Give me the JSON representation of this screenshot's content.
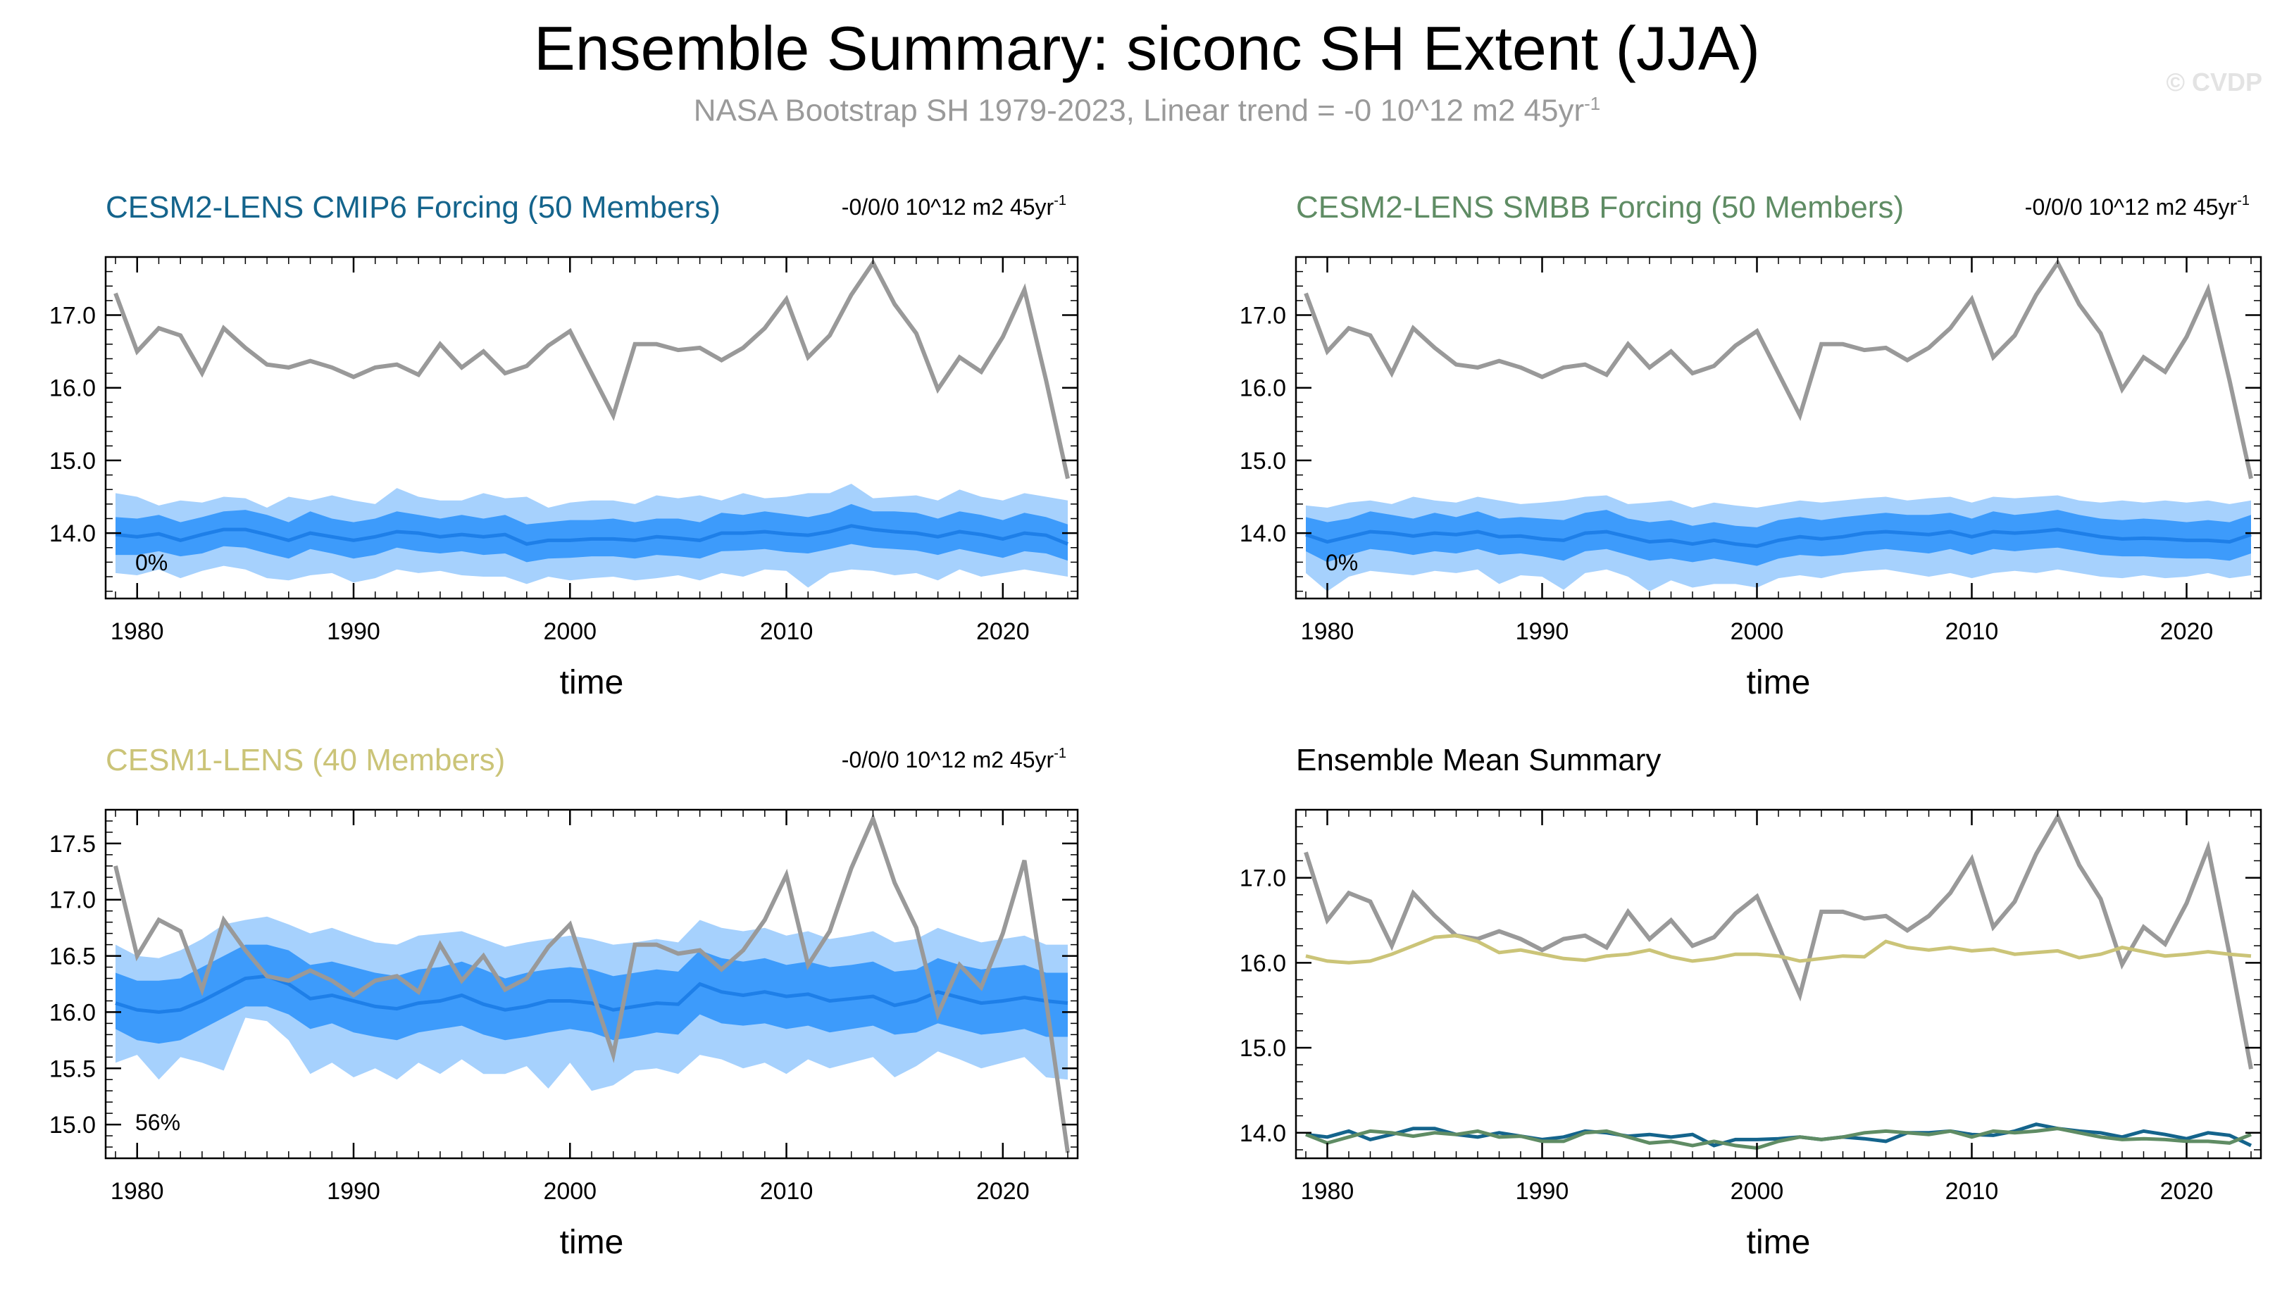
{
  "figure": {
    "title": "Ensemble Summary: siconc SH Extent (JJA)",
    "subtitle": "NASA Bootstrap SH 1979-2023, Linear trend = -0 10^12 m2 45yr",
    "subtitle_sup": "-1",
    "watermark": "© CVDP"
  },
  "colors": {
    "obs": "#999999",
    "band_outer": "#a6d1fd",
    "band_inner": "#3d9bfb",
    "mean_line": "#1e7fe8",
    "cmip6_title": "#14648c",
    "smbb_title": "#5f8c64",
    "cesm1_title": "#cbc478"
  },
  "chart_data": [
    {
      "type": "line",
      "title": "CESM2-LENS CMIP6 Forcing (50 Members)",
      "trend_label": "-0/0/0 10^12 m2 45yr",
      "trend_sup": "-1",
      "xlabel": "time",
      "xlim": [
        1979,
        2023
      ],
      "ylim": [
        13.1,
        17.8
      ],
      "xticks": [
        1980,
        1990,
        2000,
        2010,
        2020
      ],
      "yticks": [
        14.0,
        15.0,
        16.0,
        17.0
      ],
      "percent_label": "0%",
      "years_start": 1979,
      "obs": [
        17.3,
        16.5,
        16.82,
        16.72,
        16.2,
        16.82,
        16.55,
        16.32,
        16.28,
        16.37,
        16.28,
        16.15,
        16.28,
        16.32,
        16.18,
        16.6,
        16.28,
        16.5,
        16.2,
        16.3,
        16.58,
        16.78,
        16.2,
        15.62,
        16.6,
        16.6,
        16.52,
        16.55,
        16.38,
        16.55,
        16.82,
        17.22,
        16.42,
        16.72,
        17.28,
        17.72,
        17.15,
        16.75,
        15.98,
        16.42,
        16.22,
        16.7,
        17.35,
        16.1,
        14.75
      ],
      "mean": [
        13.98,
        13.95,
        13.99,
        13.9,
        13.98,
        14.05,
        14.05,
        13.98,
        13.9,
        14.0,
        13.95,
        13.9,
        13.95,
        14.02,
        14.0,
        13.95,
        13.98,
        13.95,
        13.98,
        13.85,
        13.9,
        13.9,
        13.92,
        13.92,
        13.9,
        13.95,
        13.93,
        13.9,
        14.0,
        14.0,
        14.02,
        13.99,
        13.97,
        14.02,
        14.1,
        14.05,
        14.02,
        14.0,
        13.95,
        14.02,
        13.98,
        13.92,
        14.0,
        13.97,
        13.85
      ],
      "inner_lo": [
        13.7,
        13.7,
        13.75,
        13.68,
        13.72,
        13.82,
        13.8,
        13.72,
        13.65,
        13.78,
        13.72,
        13.65,
        13.7,
        13.8,
        13.75,
        13.72,
        13.75,
        13.7,
        13.72,
        13.6,
        13.65,
        13.66,
        13.68,
        13.68,
        13.65,
        13.7,
        13.68,
        13.65,
        13.75,
        13.76,
        13.78,
        13.74,
        13.72,
        13.78,
        13.85,
        13.8,
        13.78,
        13.76,
        13.7,
        13.78,
        13.72,
        13.66,
        13.75,
        13.72,
        13.62
      ],
      "inner_hi": [
        14.22,
        14.2,
        14.25,
        14.15,
        14.22,
        14.3,
        14.32,
        14.25,
        14.15,
        14.3,
        14.2,
        14.15,
        14.2,
        14.3,
        14.25,
        14.2,
        14.25,
        14.2,
        14.25,
        14.12,
        14.15,
        14.18,
        14.18,
        14.2,
        14.15,
        14.2,
        14.2,
        14.15,
        14.28,
        14.25,
        14.3,
        14.26,
        14.22,
        14.28,
        14.4,
        14.3,
        14.3,
        14.28,
        14.2,
        14.3,
        14.25,
        14.18,
        14.28,
        14.22,
        14.12
      ],
      "outer_lo": [
        13.45,
        13.42,
        13.5,
        13.38,
        13.48,
        13.55,
        13.5,
        13.38,
        13.35,
        13.42,
        13.45,
        13.32,
        13.38,
        13.5,
        13.45,
        13.48,
        13.42,
        13.4,
        13.4,
        13.3,
        13.4,
        13.35,
        13.38,
        13.4,
        13.35,
        13.38,
        13.42,
        13.35,
        13.45,
        13.4,
        13.5,
        13.48,
        13.25,
        13.45,
        13.5,
        13.48,
        13.42,
        13.45,
        13.35,
        13.5,
        13.4,
        13.45,
        13.5,
        13.45,
        13.4
      ],
      "outer_hi": [
        14.55,
        14.5,
        14.38,
        14.45,
        14.42,
        14.5,
        14.48,
        14.35,
        14.5,
        14.45,
        14.52,
        14.45,
        14.4,
        14.62,
        14.5,
        14.45,
        14.45,
        14.55,
        14.48,
        14.5,
        14.35,
        14.42,
        14.45,
        14.45,
        14.4,
        14.52,
        14.48,
        14.52,
        14.45,
        14.55,
        14.48,
        14.5,
        14.55,
        14.55,
        14.68,
        14.48,
        14.5,
        14.52,
        14.45,
        14.6,
        14.5,
        14.45,
        14.55,
        14.5,
        14.45
      ]
    },
    {
      "type": "line",
      "title": "CESM2-LENS SMBB Forcing (50 Members)",
      "trend_label": "-0/0/0 10^12 m2 45yr",
      "trend_sup": "-1",
      "xlabel": "time",
      "xlim": [
        1979,
        2023
      ],
      "ylim": [
        13.1,
        17.8
      ],
      "xticks": [
        1980,
        1990,
        2000,
        2010,
        2020
      ],
      "yticks": [
        14.0,
        15.0,
        16.0,
        17.0
      ],
      "percent_label": "0%",
      "years_start": 1979,
      "obs": [
        17.3,
        16.5,
        16.82,
        16.72,
        16.2,
        16.82,
        16.55,
        16.32,
        16.28,
        16.37,
        16.28,
        16.15,
        16.28,
        16.32,
        16.18,
        16.6,
        16.28,
        16.5,
        16.2,
        16.3,
        16.58,
        16.78,
        16.2,
        15.62,
        16.6,
        16.6,
        16.52,
        16.55,
        16.38,
        16.55,
        16.82,
        17.22,
        16.42,
        16.72,
        17.28,
        17.72,
        17.15,
        16.75,
        15.98,
        16.42,
        16.22,
        16.7,
        17.35,
        16.1,
        14.75
      ],
      "mean": [
        13.98,
        13.88,
        13.95,
        14.02,
        14.0,
        13.96,
        14.0,
        13.98,
        14.02,
        13.95,
        13.96,
        13.92,
        13.9,
        14.0,
        14.02,
        13.95,
        13.88,
        13.9,
        13.85,
        13.9,
        13.85,
        13.82,
        13.9,
        13.95,
        13.92,
        13.95,
        14.0,
        14.02,
        14.0,
        13.98,
        14.02,
        13.95,
        14.02,
        14.0,
        14.02,
        14.05,
        14.0,
        13.95,
        13.92,
        13.93,
        13.92,
        13.9,
        13.9,
        13.88,
        13.98
      ],
      "inner_lo": [
        13.75,
        13.6,
        13.7,
        13.78,
        13.75,
        13.7,
        13.75,
        13.72,
        13.78,
        13.7,
        13.72,
        13.68,
        13.62,
        13.75,
        13.78,
        13.7,
        13.62,
        13.65,
        13.6,
        13.65,
        13.6,
        13.55,
        13.65,
        13.7,
        13.68,
        13.7,
        13.75,
        13.78,
        13.75,
        13.72,
        13.78,
        13.7,
        13.78,
        13.75,
        13.78,
        13.8,
        13.75,
        13.7,
        13.68,
        13.68,
        13.66,
        13.65,
        13.65,
        13.62,
        13.72
      ],
      "inner_hi": [
        14.22,
        14.15,
        14.2,
        14.3,
        14.25,
        14.2,
        14.28,
        14.22,
        14.3,
        14.2,
        14.22,
        14.2,
        14.18,
        14.28,
        14.32,
        14.2,
        14.15,
        14.18,
        14.1,
        14.15,
        14.1,
        14.08,
        14.18,
        14.22,
        14.18,
        14.22,
        14.25,
        14.28,
        14.25,
        14.25,
        14.28,
        14.2,
        14.3,
        14.25,
        14.28,
        14.32,
        14.25,
        14.2,
        14.18,
        14.2,
        14.18,
        14.15,
        14.18,
        14.15,
        14.25
      ],
      "outer_lo": [
        13.45,
        13.2,
        13.4,
        13.48,
        13.45,
        13.42,
        13.48,
        13.45,
        13.5,
        13.3,
        13.42,
        13.4,
        13.22,
        13.45,
        13.5,
        13.4,
        13.2,
        13.35,
        13.25,
        13.3,
        13.3,
        13.25,
        13.38,
        13.42,
        13.38,
        13.45,
        13.48,
        13.5,
        13.45,
        13.4,
        13.45,
        13.38,
        13.45,
        13.48,
        13.45,
        13.5,
        13.45,
        13.4,
        13.38,
        13.42,
        13.38,
        13.4,
        13.45,
        13.38,
        13.42
      ],
      "outer_hi": [
        14.38,
        14.35,
        14.42,
        14.45,
        14.4,
        14.5,
        14.45,
        14.42,
        14.5,
        14.45,
        14.4,
        14.42,
        14.45,
        14.5,
        14.52,
        14.4,
        14.42,
        14.45,
        14.35,
        14.42,
        14.38,
        14.35,
        14.4,
        14.45,
        14.42,
        14.45,
        14.48,
        14.5,
        14.45,
        14.48,
        14.5,
        14.42,
        14.5,
        14.48,
        14.5,
        14.52,
        14.45,
        14.42,
        14.45,
        14.42,
        14.45,
        14.42,
        14.45,
        14.4,
        14.45
      ]
    },
    {
      "type": "line",
      "title": "CESM1-LENS (40 Members)",
      "trend_label": "-0/0/0 10^12 m2 45yr",
      "trend_sup": "-1",
      "xlabel": "time",
      "xlim": [
        1979,
        2023
      ],
      "ylim": [
        14.7,
        17.8
      ],
      "xticks": [
        1980,
        1990,
        2000,
        2010,
        2020
      ],
      "yticks": [
        15.0,
        15.5,
        16.0,
        16.5,
        17.0,
        17.5
      ],
      "percent_label": "56%",
      "years_start": 1979,
      "obs": [
        17.3,
        16.5,
        16.82,
        16.72,
        16.2,
        16.82,
        16.55,
        16.32,
        16.28,
        16.37,
        16.28,
        16.15,
        16.28,
        16.32,
        16.18,
        16.6,
        16.28,
        16.5,
        16.2,
        16.3,
        16.58,
        16.78,
        16.2,
        15.62,
        16.6,
        16.6,
        16.52,
        16.55,
        16.38,
        16.55,
        16.82,
        17.22,
        16.42,
        16.72,
        17.28,
        17.72,
        17.15,
        16.75,
        15.98,
        16.42,
        16.22,
        16.7,
        17.35,
        16.1,
        14.75
      ],
      "mean": [
        16.08,
        16.02,
        16.0,
        16.02,
        16.1,
        16.2,
        16.3,
        16.32,
        16.25,
        16.12,
        16.15,
        16.1,
        16.05,
        16.03,
        16.08,
        16.1,
        16.15,
        16.07,
        16.02,
        16.05,
        16.1,
        16.1,
        16.08,
        16.02,
        16.05,
        16.08,
        16.07,
        16.25,
        16.18,
        16.15,
        16.18,
        16.14,
        16.16,
        16.1,
        16.12,
        16.14,
        16.06,
        16.1,
        16.18,
        16.13,
        16.08,
        16.1,
        16.13,
        16.1,
        16.08
      ],
      "inner_lo": [
        15.85,
        15.75,
        15.72,
        15.75,
        15.85,
        15.95,
        16.05,
        16.05,
        15.98,
        15.85,
        15.9,
        15.82,
        15.78,
        15.75,
        15.82,
        15.85,
        15.88,
        15.8,
        15.75,
        15.78,
        15.82,
        15.85,
        15.82,
        15.75,
        15.78,
        15.82,
        15.8,
        15.98,
        15.9,
        15.88,
        15.9,
        15.85,
        15.88,
        15.82,
        15.85,
        15.88,
        15.8,
        15.82,
        15.9,
        15.85,
        15.8,
        15.82,
        15.85,
        15.78,
        15.78
      ],
      "inner_hi": [
        16.35,
        16.28,
        16.28,
        16.3,
        16.4,
        16.5,
        16.6,
        16.6,
        16.55,
        16.42,
        16.45,
        16.4,
        16.35,
        16.32,
        16.38,
        16.4,
        16.45,
        16.38,
        16.3,
        16.35,
        16.38,
        16.4,
        16.38,
        16.32,
        16.35,
        16.38,
        16.36,
        16.55,
        16.48,
        16.45,
        16.48,
        16.42,
        16.45,
        16.4,
        16.42,
        16.45,
        16.36,
        16.38,
        16.48,
        16.42,
        16.38,
        16.4,
        16.42,
        16.35,
        16.35
      ],
      "outer_lo": [
        15.55,
        15.62,
        15.4,
        15.6,
        15.55,
        15.48,
        15.95,
        15.92,
        15.75,
        15.45,
        15.55,
        15.42,
        15.5,
        15.4,
        15.55,
        15.45,
        15.58,
        15.45,
        15.45,
        15.52,
        15.32,
        15.55,
        15.3,
        15.35,
        15.48,
        15.5,
        15.45,
        15.62,
        15.58,
        15.5,
        15.55,
        15.45,
        15.58,
        15.5,
        15.55,
        15.6,
        15.42,
        15.52,
        15.65,
        15.58,
        15.5,
        15.55,
        15.6,
        15.42,
        15.4
      ],
      "outer_hi": [
        16.6,
        16.5,
        16.48,
        16.55,
        16.65,
        16.78,
        16.82,
        16.85,
        16.78,
        16.7,
        16.75,
        16.68,
        16.62,
        16.6,
        16.68,
        16.7,
        16.72,
        16.65,
        16.58,
        16.62,
        16.65,
        16.68,
        16.65,
        16.6,
        16.62,
        16.65,
        16.62,
        16.82,
        16.75,
        16.72,
        16.75,
        16.68,
        16.72,
        16.65,
        16.68,
        16.72,
        16.62,
        16.65,
        16.75,
        16.68,
        16.62,
        16.65,
        16.68,
        16.6,
        16.6
      ]
    },
    {
      "type": "line",
      "title": "Ensemble Mean Summary",
      "xlabel": "time",
      "xlim": [
        1979,
        2023
      ],
      "ylim": [
        13.7,
        17.8
      ],
      "xticks": [
        1980,
        1990,
        2000,
        2010,
        2020
      ],
      "yticks": [
        14.0,
        15.0,
        16.0,
        17.0
      ],
      "years_start": 1979,
      "series": [
        {
          "name": "NASA Bootstrap SH",
          "color": "#999999",
          "values": [
            17.3,
            16.5,
            16.82,
            16.72,
            16.2,
            16.82,
            16.55,
            16.32,
            16.28,
            16.37,
            16.28,
            16.15,
            16.28,
            16.32,
            16.18,
            16.6,
            16.28,
            16.5,
            16.2,
            16.3,
            16.58,
            16.78,
            16.2,
            15.62,
            16.6,
            16.6,
            16.52,
            16.55,
            16.38,
            16.55,
            16.82,
            17.22,
            16.42,
            16.72,
            17.28,
            17.72,
            17.15,
            16.75,
            15.98,
            16.42,
            16.22,
            16.7,
            17.35,
            16.1,
            14.75
          ]
        },
        {
          "name": "CESM1-LENS",
          "color": "#cbc478",
          "values": [
            16.08,
            16.02,
            16.0,
            16.02,
            16.1,
            16.2,
            16.3,
            16.32,
            16.25,
            16.12,
            16.15,
            16.1,
            16.05,
            16.03,
            16.08,
            16.1,
            16.15,
            16.07,
            16.02,
            16.05,
            16.1,
            16.1,
            16.08,
            16.02,
            16.05,
            16.08,
            16.07,
            16.25,
            16.18,
            16.15,
            16.18,
            16.14,
            16.16,
            16.1,
            16.12,
            16.14,
            16.06,
            16.1,
            16.18,
            16.13,
            16.08,
            16.1,
            16.13,
            16.1,
            16.08
          ]
        },
        {
          "name": "CESM2-LENS CMIP6 Forcing",
          "color": "#14648c",
          "values": [
            13.98,
            13.95,
            14.02,
            13.92,
            13.98,
            14.05,
            14.05,
            13.98,
            13.95,
            14.0,
            13.96,
            13.92,
            13.95,
            14.02,
            14.0,
            13.96,
            13.98,
            13.95,
            13.98,
            13.85,
            13.92,
            13.92,
            13.93,
            13.95,
            13.92,
            13.95,
            13.93,
            13.9,
            14.0,
            14.0,
            14.02,
            13.98,
            13.97,
            14.02,
            14.1,
            14.05,
            14.02,
            14.0,
            13.95,
            14.02,
            13.98,
            13.93,
            14.0,
            13.97,
            13.85
          ]
        },
        {
          "name": "CESM2-LENS SMBB Forcing",
          "color": "#5f8c64",
          "values": [
            13.98,
            13.88,
            13.95,
            14.02,
            14.0,
            13.96,
            14.0,
            13.98,
            14.02,
            13.95,
            13.96,
            13.9,
            13.9,
            14.0,
            14.02,
            13.95,
            13.88,
            13.9,
            13.85,
            13.9,
            13.85,
            13.82,
            13.9,
            13.95,
            13.92,
            13.95,
            14.0,
            14.02,
            14.0,
            13.98,
            14.02,
            13.95,
            14.02,
            14.0,
            14.02,
            14.05,
            14.0,
            13.95,
            13.92,
            13.93,
            13.92,
            13.9,
            13.9,
            13.88,
            13.98
          ]
        }
      ]
    }
  ]
}
